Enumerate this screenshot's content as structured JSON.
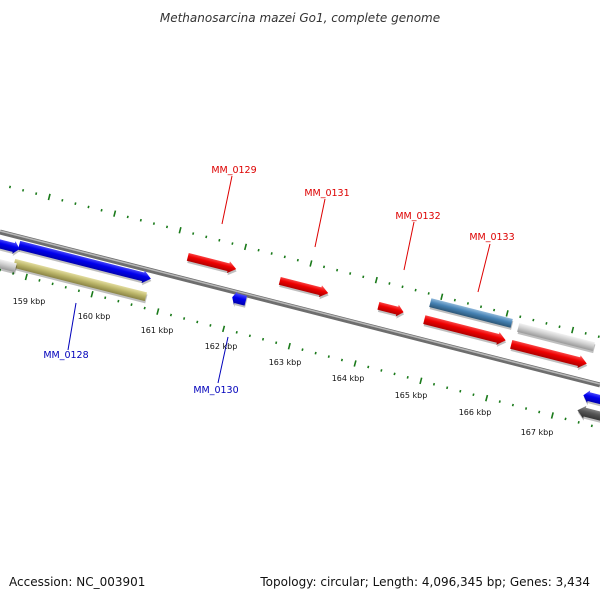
{
  "title": "Methanosarcina mazei Go1, complete genome",
  "footer": {
    "accession": "Accession: NC_003901",
    "summary": "Topology: circular; Length: 4,096,345 bp; Genes: 3,434"
  },
  "tick_labels": [
    "159 kbp",
    "160 kbp",
    "161 kbp",
    "162 kbp",
    "163 kbp",
    "164 kbp",
    "165 kbp",
    "166 kbp",
    "167 kbp"
  ],
  "genes_forward": [
    {
      "label": "MM_0129",
      "color": "#dd0000"
    },
    {
      "label": "MM_0131",
      "color": "#dd0000"
    },
    {
      "label": "MM_0132",
      "color": "#dd0000"
    },
    {
      "label": "MM_0133",
      "color": "#dd0000"
    }
  ],
  "genes_reverse": [
    {
      "label": "MM_0128",
      "color": "#0000bb"
    },
    {
      "label": "MM_0130",
      "color": "#0000bb"
    }
  ],
  "colors": {
    "backbone": "#888888",
    "tick": "#1a7a1a",
    "cds_red": "#ee0000",
    "cds_blue": "#0000ee",
    "cds_steelblue": "#4682b4",
    "cds_khaki": "#bdb76b",
    "cds_lightgray": "#c8c8c8",
    "cds_darkgray": "#555555"
  }
}
